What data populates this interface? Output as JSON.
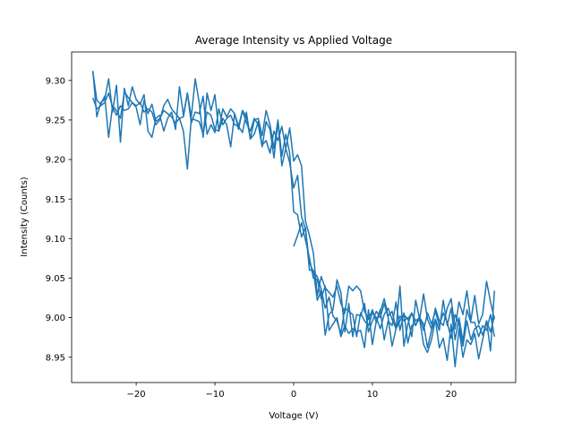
{
  "chart_data": {
    "type": "line",
    "title": "Average Intensity vs Applied Voltage",
    "xlabel": "Voltage (V)",
    "ylabel": "Intensity (Counts)",
    "xlim": [
      -28.2,
      28.2
    ],
    "ylim": [
      8.918,
      9.336
    ],
    "xticks": [
      -20,
      -10,
      0,
      10,
      20
    ],
    "yticks": [
      8.95,
      9.0,
      9.05,
      9.1,
      9.15,
      9.2,
      9.25,
      9.3
    ],
    "xtick_labels": [
      "−20",
      "−10",
      "0",
      "10",
      "20"
    ],
    "ytick_labels": [
      "8.95",
      "9.00",
      "9.05",
      "9.10",
      "9.15",
      "9.20",
      "9.25",
      "9.30"
    ],
    "grid": false,
    "line_color": "#1f77b4",
    "series": [
      {
        "x": [
          -25.5,
          -25.0,
          -24.5,
          -24.0,
          -23.5,
          -23.0,
          -22.5,
          -22.0,
          -21.5,
          -21.0,
          -20.5,
          -20.0,
          -19.5,
          -19.0,
          -18.5,
          -18.0,
          -17.5,
          -17.0,
          -16.5,
          -16.0,
          -15.5,
          -15.0,
          -14.5,
          -14.0,
          -13.5,
          -13.0,
          -12.5,
          -12.0,
          -11.5,
          -11.0,
          -10.5,
          -10.0,
          -9.5,
          -9.0,
          -8.5,
          -8.0,
          -7.5,
          -7.0,
          -6.5,
          -6.0,
          -5.5,
          -5.0,
          -4.5,
          -4.0,
          -3.5,
          -3.0,
          -2.5,
          -2.0,
          -1.5,
          -1.0,
          -0.5,
          0.0,
          0.5,
          1.0,
          1.5,
          2.0,
          2.5,
          3.0,
          3.5,
          4.0,
          4.5,
          5.0,
          5.5,
          6.0,
          6.5,
          7.0,
          7.5,
          8.0,
          8.5,
          9.0,
          9.5,
          10.0,
          10.5,
          11.0,
          11.5,
          12.0,
          12.5,
          13.0,
          13.5,
          14.0,
          14.5,
          15.0,
          15.5,
          16.0,
          16.5,
          17.0,
          17.5,
          18.0,
          18.5,
          19.0,
          19.5,
          20.0,
          20.5,
          21.0,
          21.5,
          22.0,
          22.5,
          23.0,
          23.5,
          24.0,
          24.5,
          25.0,
          25.5
        ],
        "y": [
          9.311,
          9.275,
          9.27,
          9.28,
          9.228,
          9.268,
          9.262,
          9.252,
          9.286,
          9.278,
          9.272,
          9.266,
          9.244,
          9.275,
          9.258,
          9.27,
          9.248,
          9.252,
          9.262,
          9.258,
          9.254,
          9.246,
          9.252,
          9.236,
          9.188,
          9.252,
          9.25,
          9.248,
          9.232,
          9.26,
          9.256,
          9.238,
          9.236,
          9.252,
          9.244,
          9.216,
          9.258,
          9.242,
          9.234,
          9.26,
          9.226,
          9.232,
          9.248,
          9.218,
          9.224,
          9.208,
          9.236,
          9.224,
          9.242,
          9.214,
          9.196,
          9.164,
          9.18,
          9.128,
          9.112,
          9.07,
          9.058,
          9.052,
          9.036,
          9.012,
          9.026,
          9.002,
          8.996,
          8.98,
          9.012,
          9.008,
          9.004,
          8.976,
          9.006,
          8.996,
          8.99,
          9.006,
          9.0,
          8.986,
          9.004,
          9.012,
          8.998,
          8.986,
          8.996,
          9.004,
          8.998,
          9.006,
          8.99,
          9.002,
          8.984,
          9.006,
          8.992,
          9.008,
          8.99,
          9.006,
          8.994,
          8.974,
          9.004,
          8.992,
          8.964,
          8.996,
          8.972,
          8.986,
          8.99,
          8.978,
          8.996,
          8.982,
          9.002
        ]
      },
      {
        "x": [
          25.5,
          25.0,
          24.5,
          24.0,
          23.5,
          23.0,
          22.5,
          22.0,
          21.5,
          21.0,
          20.5,
          20.0,
          19.5,
          19.0,
          18.5,
          18.0,
          17.5,
          17.0,
          16.5,
          16.0,
          15.5,
          15.0,
          14.5,
          14.0,
          13.5,
          13.0,
          12.5,
          12.0,
          11.5,
          11.0,
          10.5,
          10.0,
          9.5,
          9.0,
          8.5,
          8.0,
          7.5,
          7.0,
          6.5,
          6.0,
          5.5,
          5.0,
          4.5,
          4.0,
          3.5,
          3.0,
          2.5,
          2.0,
          1.5,
          1.0,
          0.5,
          0.0,
          -0.5,
          -1.0,
          -1.5,
          -2.0,
          -2.5,
          -3.0,
          -3.5,
          -4.0,
          -4.5,
          -5.0,
          -5.5,
          -6.0,
          -6.5,
          -7.0,
          -7.5,
          -8.0,
          -8.5,
          -9.0,
          -9.5,
          -10.0,
          -10.5,
          -11.0,
          -11.5,
          -12.0,
          -12.5,
          -13.0,
          -13.5,
          -14.0,
          -14.5,
          -15.0,
          -15.5,
          -16.0,
          -16.5,
          -17.0,
          -17.5,
          -18.0,
          -18.5,
          -19.0,
          -19.5,
          -20.0,
          -20.5,
          -21.0,
          -21.5,
          -22.0,
          -22.5,
          -23.0,
          -23.5,
          -24.0,
          -24.5,
          -25.0,
          -25.5
        ],
        "y": [
          8.998,
          9.02,
          9.046,
          9.004,
          8.992,
          9.028,
          8.996,
          9.034,
          9.004,
          9.02,
          8.986,
          9.024,
          9.012,
          8.99,
          8.996,
          9.012,
          8.986,
          8.998,
          9.03,
          8.998,
          9.022,
          8.976,
          9.0,
          8.996,
          9.002,
          8.986,
          9.008,
          9.002,
          9.024,
          9.008,
          8.994,
          9.01,
          8.998,
          9.008,
          9.034,
          9.04,
          9.034,
          9.04,
          9.006,
          9.018,
          9.04,
          9.026,
          9.032,
          9.038,
          9.052,
          9.028,
          9.082,
          9.104,
          9.122,
          9.192,
          9.206,
          9.198,
          9.24,
          9.214,
          9.192,
          9.248,
          9.202,
          9.238,
          9.248,
          9.216,
          9.244,
          9.252,
          9.236,
          9.246,
          9.262,
          9.242,
          9.244,
          9.256,
          9.252,
          9.244,
          9.264,
          9.234,
          9.244,
          9.232,
          9.28,
          9.258,
          9.26,
          9.246,
          9.284,
          9.254,
          9.252,
          9.258,
          9.264,
          9.276,
          9.268,
          9.25,
          9.244,
          9.26,
          9.264,
          9.26,
          9.272,
          9.268,
          9.272,
          9.264,
          9.262,
          9.268,
          9.256,
          9.266,
          9.284,
          9.272,
          9.268,
          9.264,
          9.278
        ]
      },
      {
        "x": [
          -25.5,
          -25.0,
          -24.5,
          -24.0,
          -23.5,
          -23.0,
          -22.5,
          -22.0,
          -21.5,
          -21.0,
          -20.5,
          -20.0,
          -19.5,
          -19.0,
          -18.5,
          -18.0,
          -17.5,
          -17.0,
          -16.5,
          -16.0,
          -15.5,
          -15.0,
          -14.5,
          -14.0,
          -13.5,
          -13.0,
          -12.5,
          -12.0,
          -11.5,
          -11.0,
          -10.5,
          -10.0,
          -9.5,
          -9.0,
          -8.5,
          -8.0,
          -7.5,
          -7.0,
          -6.5,
          -6.0,
          -5.5,
          -5.0,
          -4.5,
          -4.0,
          -3.5,
          -3.0,
          -2.5,
          -2.0,
          -1.5,
          -1.0,
          -0.5,
          0.0,
          0.5,
          1.0,
          1.5,
          2.0,
          2.5,
          3.0,
          3.5,
          4.0,
          4.5,
          5.0,
          5.5,
          6.0,
          6.5,
          7.0,
          7.5,
          8.0,
          8.5,
          9.0,
          9.5,
          10.0,
          10.5,
          11.0,
          11.5,
          12.0,
          12.5,
          13.0,
          13.5,
          14.0,
          14.5,
          15.0,
          15.5,
          16.0,
          16.5,
          17.0,
          17.5,
          18.0,
          18.5,
          19.0,
          19.5,
          20.0,
          20.5,
          21.0,
          21.5,
          22.0,
          22.5,
          23.0,
          23.5,
          24.0,
          24.5,
          25.0,
          25.5
        ],
        "y": [
          9.312,
          9.254,
          9.272,
          9.276,
          9.302,
          9.26,
          9.294,
          9.222,
          9.29,
          9.268,
          9.292,
          9.276,
          9.27,
          9.282,
          9.236,
          9.228,
          9.252,
          9.256,
          9.236,
          9.252,
          9.26,
          9.238,
          9.292,
          9.256,
          9.284,
          9.254,
          9.302,
          9.272,
          9.228,
          9.284,
          9.262,
          9.282,
          9.236,
          9.264,
          9.254,
          9.264,
          9.258,
          9.238,
          9.262,
          9.254,
          9.226,
          9.25,
          9.252,
          9.23,
          9.262,
          9.244,
          9.214,
          9.25,
          9.204,
          9.232,
          9.208,
          9.134,
          9.13,
          9.102,
          9.114,
          9.06,
          9.06,
          9.022,
          9.034,
          8.978,
          9.004,
          9.01,
          9.048,
          9.032,
          8.982,
          9.018,
          8.976,
          9.004,
          9.002,
          9.018,
          8.982,
          8.996,
          9.008,
          9.0,
          9.018,
          9.0,
          8.964,
          8.986,
          9.04,
          8.964,
          8.992,
          9.006,
          8.996,
          9.0,
          8.992,
          8.962,
          8.984,
          8.998,
          8.984,
          9.022,
          8.99,
          9.012,
          8.972,
          9.0,
          8.97,
          9.01,
          8.994,
          8.994,
          8.976,
          8.99,
          8.984,
          9.004,
          8.976
        ]
      },
      {
        "x": [
          25.5,
          25.0,
          24.5,
          24.0,
          23.5,
          23.0,
          22.5,
          22.0,
          21.5,
          21.0,
          20.5,
          20.0,
          19.5,
          19.0,
          18.5,
          18.0,
          17.5,
          17.0,
          16.5,
          16.0,
          15.5,
          15.0,
          14.5,
          14.0,
          13.5,
          13.0,
          12.5,
          12.0,
          11.5,
          11.0,
          10.5,
          10.0,
          9.5,
          9.0,
          8.5,
          8.0,
          7.5,
          7.0,
          6.5,
          6.0,
          5.5,
          5.0,
          4.5,
          4.0,
          3.5,
          3.0,
          2.5,
          2.0,
          1.5,
          1.0,
          0.5,
          0.0
        ],
        "y": [
          9.034,
          8.958,
          8.996,
          8.972,
          8.948,
          8.98,
          8.966,
          8.972,
          8.95,
          8.986,
          8.938,
          8.992,
          8.946,
          8.974,
          8.962,
          8.998,
          8.972,
          8.956,
          8.966,
          8.998,
          8.992,
          8.99,
          8.968,
          9.006,
          8.984,
          9.02,
          8.99,
          8.996,
          8.972,
          9.01,
          8.996,
          8.966,
          9.01,
          8.962,
          8.984,
          8.982,
          8.986,
          8.98,
          8.99,
          8.976,
          9.0,
          8.992,
          8.984,
          9.04,
          9.024,
          9.048,
          9.05,
          9.076,
          9.098,
          9.12,
          9.104,
          9.09
        ]
      }
    ]
  }
}
